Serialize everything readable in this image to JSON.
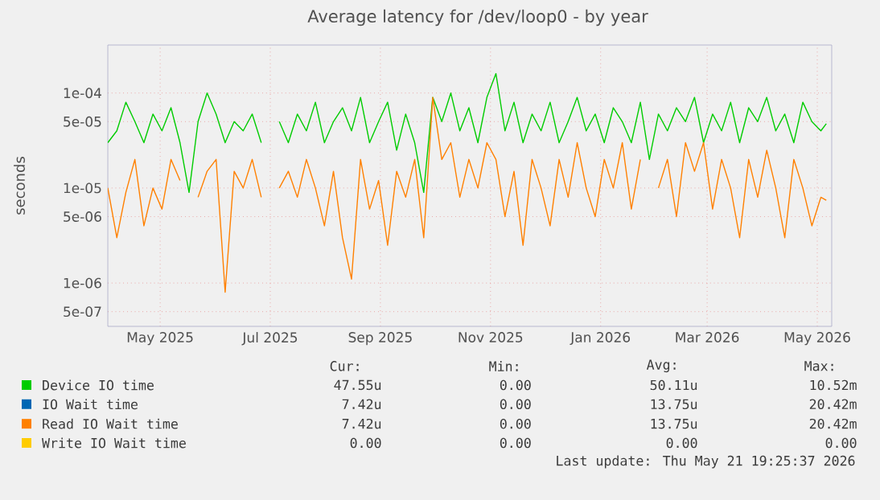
{
  "chart_data": {
    "type": "line",
    "title": "Average latency for /dev/loop0 - by year",
    "ylabel": "seconds",
    "x": [
      "2025-04-18",
      "2025-04-23",
      "2025-04-28",
      "2025-05-03",
      "2025-05-08",
      "2025-05-13",
      "2025-05-18",
      "2025-05-23",
      "2025-05-28",
      "2025-06-02",
      "2025-06-07",
      "2025-06-12",
      "2025-06-17",
      "2025-06-22",
      "2025-06-27",
      "2025-07-02",
      "2025-07-07",
      "2025-07-12",
      "2025-07-17",
      "2025-07-22",
      "2025-07-27",
      "2025-08-01",
      "2025-08-06",
      "2025-08-11",
      "2025-08-16",
      "2025-08-21",
      "2025-08-26",
      "2025-08-31",
      "2025-09-05",
      "2025-09-10",
      "2025-09-15",
      "2025-09-20",
      "2025-09-25",
      "2025-09-30",
      "2025-10-05",
      "2025-10-10",
      "2025-10-15",
      "2025-10-20",
      "2025-10-25",
      "2025-10-30",
      "2025-11-04",
      "2025-11-09",
      "2025-11-14",
      "2025-11-19",
      "2025-11-24",
      "2025-11-29",
      "2025-12-04",
      "2025-12-09",
      "2025-12-14",
      "2025-12-19",
      "2025-12-24",
      "2025-12-29",
      "2026-01-03",
      "2026-01-08",
      "2026-01-13",
      "2026-01-18",
      "2026-01-23",
      "2026-01-28",
      "2026-02-02",
      "2026-02-07",
      "2026-02-12",
      "2026-02-17",
      "2026-02-22",
      "2026-02-27",
      "2026-03-04",
      "2026-03-09",
      "2026-03-14",
      "2026-03-19",
      "2026-03-24",
      "2026-03-29",
      "2026-04-03",
      "2026-04-08",
      "2026-04-13",
      "2026-04-18",
      "2026-04-23",
      "2026-04-28",
      "2026-05-03",
      "2026-05-08",
      "2026-05-13",
      "2026-05-18",
      "2026-05-21"
    ],
    "series": [
      {
        "name": "Device IO time",
        "color": "#00cc00",
        "values": [
          3e-05,
          4e-05,
          8e-05,
          5e-05,
          3e-05,
          6e-05,
          4e-05,
          7e-05,
          3e-05,
          9e-06,
          5e-05,
          0.0001,
          6e-05,
          3e-05,
          5e-05,
          4e-05,
          6e-05,
          3e-05,
          null,
          5e-05,
          3e-05,
          6e-05,
          4e-05,
          8e-05,
          3e-05,
          5e-05,
          7e-05,
          4e-05,
          9e-05,
          3e-05,
          5e-05,
          8e-05,
          2.5e-05,
          6e-05,
          3e-05,
          9e-06,
          9e-05,
          5e-05,
          0.0001,
          4e-05,
          7e-05,
          3e-05,
          9e-05,
          0.00016,
          4e-05,
          8e-05,
          3e-05,
          6e-05,
          4e-05,
          8e-05,
          3e-05,
          5e-05,
          9e-05,
          4e-05,
          6e-05,
          3e-05,
          7e-05,
          5e-05,
          3e-05,
          8e-05,
          2e-05,
          6e-05,
          4e-05,
          7e-05,
          5e-05,
          9e-05,
          3e-05,
          6e-05,
          4e-05,
          8e-05,
          3e-05,
          7e-05,
          5e-05,
          9e-05,
          4e-05,
          6e-05,
          3e-05,
          8e-05,
          5e-05,
          4e-05,
          4.755e-05
        ]
      },
      {
        "name": "IO Wait time",
        "color": "#0066b3",
        "values": [
          null,
          null,
          null,
          null,
          null,
          null,
          null,
          null,
          null,
          null,
          null,
          null,
          null,
          null,
          null,
          null,
          null,
          null,
          null,
          null,
          null,
          null,
          null,
          null,
          null,
          null,
          null,
          null,
          null,
          null,
          null,
          null,
          null,
          null,
          null,
          null,
          null,
          null,
          null,
          null,
          null,
          null,
          null,
          null,
          null,
          null,
          null,
          null,
          null,
          null,
          null,
          null,
          null,
          null,
          null,
          null,
          null,
          null,
          null,
          null,
          null,
          null,
          null,
          null,
          null,
          null,
          null,
          null,
          null,
          null,
          null,
          null,
          null,
          null,
          null,
          null,
          null,
          null,
          null,
          null,
          null
        ]
      },
      {
        "name": "Read IO Wait time",
        "color": "#ff8000",
        "values": [
          1e-05,
          3e-06,
          9e-06,
          2e-05,
          4e-06,
          1e-05,
          6e-06,
          2e-05,
          1.2e-05,
          null,
          8e-06,
          1.5e-05,
          2e-05,
          8e-07,
          1.5e-05,
          1e-05,
          2e-05,
          8e-06,
          null,
          1e-05,
          1.5e-05,
          8e-06,
          2e-05,
          1e-05,
          4e-06,
          1.5e-05,
          3e-06,
          1.1e-06,
          2e-05,
          6e-06,
          1.2e-05,
          2.5e-06,
          1.5e-05,
          8e-06,
          2e-05,
          3e-06,
          9e-05,
          2e-05,
          3e-05,
          8e-06,
          2e-05,
          1e-05,
          3e-05,
          2e-05,
          5e-06,
          1.5e-05,
          2.5e-06,
          2e-05,
          1e-05,
          4e-06,
          2e-05,
          8e-06,
          3e-05,
          1e-05,
          5e-06,
          2e-05,
          1e-05,
          3e-05,
          6e-06,
          2e-05,
          null,
          1e-05,
          2e-05,
          5e-06,
          3e-05,
          1.5e-05,
          3e-05,
          6e-06,
          2e-05,
          1e-05,
          3e-06,
          2e-05,
          8e-06,
          2.5e-05,
          1e-05,
          3e-06,
          2e-05,
          1e-05,
          4e-06,
          8e-06,
          7.42e-06
        ]
      },
      {
        "name": "Write IO Wait time",
        "color": "#ffcc00",
        "values": [
          null,
          null,
          null,
          null,
          null,
          null,
          null,
          null,
          null,
          null,
          null,
          null,
          null,
          null,
          null,
          null,
          null,
          null,
          null,
          null,
          null,
          null,
          null,
          null,
          null,
          null,
          null,
          null,
          null,
          null,
          null,
          null,
          null,
          null,
          null,
          null,
          null,
          null,
          null,
          null,
          null,
          null,
          null,
          null,
          null,
          null,
          null,
          null,
          null,
          null,
          null,
          null,
          null,
          null,
          null,
          null,
          null,
          null,
          null,
          null,
          null,
          null,
          null,
          null,
          null,
          null,
          null,
          null,
          null,
          null,
          null,
          null,
          null,
          null,
          null,
          null,
          null,
          null,
          null,
          null,
          null
        ]
      }
    ],
    "xlim": [
      "2025-04-18",
      "2026-05-24"
    ],
    "xticks": [
      {
        "value": "2025-05-17",
        "label": "May 2025"
      },
      {
        "value": "2025-07-17",
        "label": "Jul 2025"
      },
      {
        "value": "2025-09-16",
        "label": "Sep 2025"
      },
      {
        "value": "2025-11-16",
        "label": "Nov 2025"
      },
      {
        "value": "2026-01-16",
        "label": "Jan 2026"
      },
      {
        "value": "2026-03-16",
        "label": "Mar 2026"
      },
      {
        "value": "2026-05-16",
        "label": "May 2026"
      }
    ],
    "ylim": [
      3.5e-07,
      0.00032
    ],
    "log": "y",
    "yticks": [
      {
        "value": 5e-07,
        "label": "5e-07"
      },
      {
        "value": 1e-06,
        "label": "1e-06"
      },
      {
        "value": 5e-06,
        "label": "5e-06"
      },
      {
        "value": 1e-05,
        "label": "1e-05"
      },
      {
        "value": 5e-05,
        "label": "5e-05"
      },
      {
        "value": 0.0001,
        "label": "1e-04"
      }
    ],
    "grid": true,
    "legend": "bottom",
    "annotations": [
      "Cur:",
      "Min:",
      "Avg:",
      "Max:",
      "47.55u",
      "0.00",
      "50.11u",
      "10.52m",
      "7.42u",
      "0.00",
      "13.75u",
      "20.42m",
      "7.42u",
      "0.00",
      "13.75u",
      "20.42m",
      "0.00",
      "0.00",
      "0.00",
      "0.00",
      "Last update: Thu May 21 19:25:37 2026"
    ]
  }
}
